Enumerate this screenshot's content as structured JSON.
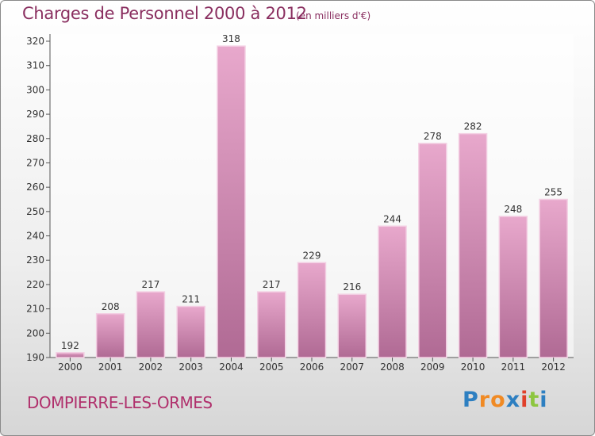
{
  "title": "Charges de Personnel 2000 à 2012",
  "subtitle": "(en milliers d'€)",
  "commune": "DOMPIERRE-LES-ORMES",
  "logo": {
    "letters": [
      "P",
      "r",
      "o",
      "x",
      "i",
      "t",
      "i"
    ],
    "colors": [
      "#2d7fc1",
      "#f08a24",
      "#f08a24",
      "#2d7fc1",
      "#e0402a",
      "#8dc63f",
      "#2d7fc1"
    ]
  },
  "colors": {
    "bar_top": "#e8a8cc",
    "bar_bottom": "#b06a94",
    "bar_edge": "#f3cfe3",
    "text": "#333333",
    "title": "#8a2f60"
  },
  "chart_data": {
    "type": "bar",
    "categories": [
      "2000",
      "2001",
      "2002",
      "2003",
      "2004",
      "2005",
      "2006",
      "2007",
      "2008",
      "2009",
      "2010",
      "2011",
      "2012"
    ],
    "values": [
      192,
      208,
      217,
      211,
      318,
      217,
      229,
      216,
      244,
      278,
      282,
      248,
      255
    ],
    "ylim": [
      190,
      320
    ],
    "yticks": [
      190,
      200,
      210,
      220,
      230,
      240,
      250,
      260,
      270,
      280,
      290,
      300,
      310,
      320
    ],
    "grid": false,
    "xlabel": "",
    "ylabel": ""
  }
}
